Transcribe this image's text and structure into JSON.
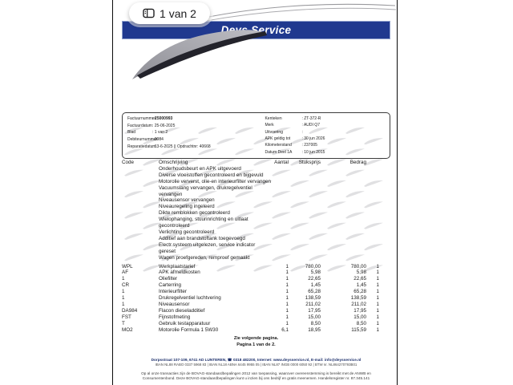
{
  "viewer": {
    "page_badge": "1 van 2"
  },
  "header": {
    "company": "Deys Service",
    "bar_color": "#20398f",
    "logo_gray": "#a8a8ac"
  },
  "invoice_info": {
    "left": [
      {
        "label": "Factuurnummer",
        "value": "25000993",
        "bold": true
      },
      {
        "label": "Factuurdatum",
        "value": "25-06-2025"
      },
      {
        "label": "Blad",
        "value": "1 van 2"
      },
      {
        "label": "Debiteurnummer",
        "value": "3084"
      },
      {
        "label": "Reparatiedatum",
        "value": "13-6-2025 || Opdrachtnr: 40668"
      }
    ],
    "right": [
      {
        "label": "Kenteken",
        "value": "ZT-372-R"
      },
      {
        "label": "Merk",
        "value": "AUDI Q7"
      },
      {
        "label": "Uitvoering",
        "value": ""
      },
      {
        "label": "APK geldig tot",
        "value": "30 jun 2026"
      },
      {
        "label": "Kilometerstand",
        "value": "237005"
      },
      {
        "label": "Datum Deel 1A",
        "value": "10 jun 2015"
      }
    ]
  },
  "table": {
    "headers": {
      "code": "Code",
      "description": "Omschrijving",
      "qty": "Aantal",
      "unit_price": "Stuksprijs",
      "amount": "Bedrag"
    },
    "work_lines": [
      "Onderhoudsbeurt en APK uitgevoerd",
      "Diverse vloeistoffen gecontroleerd en bijgevuld",
      "Motorolie ververst, olie-en interieurfilter vervangen",
      "Vacuumslang vervangen, drukregelventiel\nvervangen",
      "Niveausensor vervangen",
      "Niveauregeling ingeleerd",
      "Dikte remblokken gecontroleerd",
      "Wielophanging, stuurinrichting en uitlaat\ngecontroleerd",
      "Verlichting gecontroleerd",
      "Additief aan brandstoftank toegevoegd",
      "Electr.systeem uitgelezen, service indicator\ngereset",
      "Wagen proefgereden, remproef gemaakt"
    ],
    "rows": [
      {
        "code": "WPL",
        "description": "Werkplaatstarief",
        "qty": "1",
        "unit_price": "780,00",
        "amount": "780,00",
        "vat": "1"
      },
      {
        "code": "AF",
        "description": "APK afmeldkosten",
        "qty": "1",
        "unit_price": "5,98",
        "amount": "5,98",
        "vat": "1"
      },
      {
        "code": "1",
        "description": "Oliefilter",
        "qty": "1",
        "unit_price": "22,65",
        "amount": "22,65",
        "vat": "1"
      },
      {
        "code": "CR",
        "description": "Carterring",
        "qty": "1",
        "unit_price": "1,45",
        "amount": "1,45",
        "vat": "1"
      },
      {
        "code": "1",
        "description": "Interieurfilter",
        "qty": "1",
        "unit_price": "65,28",
        "amount": "65,28",
        "vat": "1"
      },
      {
        "code": "1",
        "description": "Drukregelventiel luchtvering",
        "qty": "1",
        "unit_price": "138,59",
        "amount": "138,59",
        "vat": "1"
      },
      {
        "code": "1",
        "description": "Niveausensor",
        "qty": "1",
        "unit_price": "211,02",
        "amount": "211,02",
        "vat": "1"
      },
      {
        "code": "DA984",
        "description": "Flacon dieseladditief",
        "qty": "1",
        "unit_price": "17,95",
        "amount": "17,95",
        "vat": "1"
      },
      {
        "code": "FST",
        "description": "Fijnstofmeting",
        "qty": "1",
        "unit_price": "15,00",
        "amount": "15,00",
        "vat": "1"
      },
      {
        "code": "T",
        "description": "Gebruik testapparatuur",
        "qty": "1",
        "unit_price": "8,50",
        "amount": "8,50",
        "vat": "1"
      },
      {
        "code": "MO2",
        "description": "Motorolie Formula 1 5W30",
        "qty": "6,1",
        "unit_price": "18,95",
        "amount": "115,59",
        "vat": "1"
      }
    ]
  },
  "page_note": {
    "line1": "Zie volgende pagina.",
    "line2": "Pagina 1 van de 2."
  },
  "footer": {
    "address_line": "Dorpsstraat 107-109, 6741 AD LUNTEREN, ☎ 0318 482200, Internet: www.deysservice.nl, E-mail: info@deysservice.nl",
    "bank_line": "IBAN NL88 RABO 0337 5968 83  |  IBAN NL18 ABNA 6445 9955 05  |  IBAN NL87 INGB 0000 6050 92  |  BTW nr. NL864270793B01",
    "terms": "Op al onze transacties zijn de BOVAG-standaardbepalingen 2012 van toepassing, waarover overeenstemming is bereikt met de ANWB en Consumentenbond. Deze BOVAG-standaardbepalingen kunt u inzien bij ons bedrijf en gratis meenemen. Handelsregister nr. 87.345.141"
  }
}
